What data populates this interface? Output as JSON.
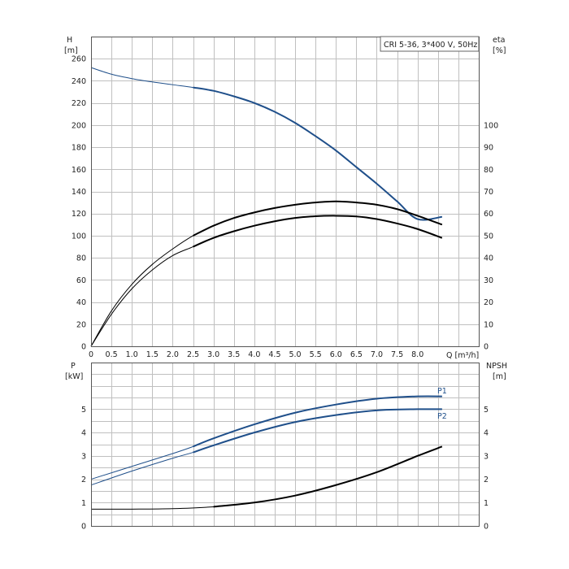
{
  "chart_data": [
    {
      "type": "line",
      "title": "CRI 5-36, 3*400 V, 50Hz",
      "xlabel": "Q [m³/h]",
      "ylabel": "H",
      "ylabel_unit": "[m]",
      "y2label": "eta",
      "y2label_unit": "[%]",
      "xlim": [
        0,
        9.5
      ],
      "ylim": [
        0,
        280
      ],
      "y2lim": [
        0,
        140
      ],
      "x_ticks": [
        "0",
        "0.5",
        "1.0",
        "1.5",
        "2.0",
        "2.5",
        "3.0",
        "3.5",
        "4.0",
        "4.5",
        "5.0",
        "5.5",
        "6.0",
        "6.5",
        "7.0",
        "7.5",
        "8.0"
      ],
      "y_ticks": [
        0,
        20,
        40,
        60,
        80,
        100,
        120,
        140,
        160,
        180,
        200,
        220,
        240,
        260
      ],
      "y2_ticks": [
        0,
        10,
        20,
        30,
        40,
        50,
        60,
        70,
        80,
        90,
        100
      ],
      "grid": true,
      "series": [
        {
          "axis": "left",
          "color": "#1f4f8a",
          "x": [
            0,
            0.5,
            1.0,
            1.5,
            2.0,
            2.5,
            3.0,
            3.5,
            4.0,
            4.5,
            5.0,
            5.5,
            6.0,
            6.5,
            7.0,
            7.5,
            8.0,
            8.6
          ],
          "y": [
            252,
            246,
            242,
            239,
            236.5,
            234,
            231,
            226,
            220,
            212,
            202,
            190,
            177,
            162,
            147,
            131,
            115,
            117
          ]
        },
        {
          "axis": "right",
          "color": "#000000",
          "x": [
            0,
            0.5,
            1.0,
            1.5,
            2.0,
            2.5,
            3.0,
            3.5,
            4.0,
            4.5,
            5.0,
            5.5,
            6.0,
            6.5,
            7.0,
            7.5,
            8.0,
            8.6
          ],
          "y": [
            0,
            16,
            28,
            37,
            44,
            50,
            54.5,
            58,
            60.5,
            62.5,
            64,
            65,
            65.5,
            65,
            64,
            62,
            59,
            55
          ]
        },
        {
          "axis": "right",
          "color": "#000000",
          "x": [
            0,
            0.5,
            1.0,
            1.5,
            2.0,
            2.5,
            3.0,
            3.5,
            4.0,
            4.5,
            5.0,
            5.5,
            6.0,
            6.5,
            7.0,
            7.5,
            8.0,
            8.6
          ],
          "y": [
            0,
            14.5,
            26,
            34.5,
            41,
            45,
            49,
            52,
            54.5,
            56.5,
            58,
            58.8,
            59,
            58.7,
            57.5,
            55.5,
            53,
            49
          ]
        }
      ]
    },
    {
      "type": "line",
      "xlim": [
        0,
        9.5
      ],
      "ylabel": "P",
      "ylabel_unit": "[kW]",
      "y2label": "NPSH",
      "y2label_unit": "[m]",
      "ylim": [
        0,
        7
      ],
      "y2lim": [
        0,
        7
      ],
      "y_ticks": [
        0,
        1,
        2,
        3,
        4,
        5
      ],
      "y2_ticks": [
        0,
        1,
        2,
        3,
        4,
        5
      ],
      "grid": true,
      "series": [
        {
          "name": "P1",
          "axis": "left",
          "color": "#1f4f8a",
          "x": [
            0,
            1,
            2,
            2.5,
            3,
            4,
            5,
            6,
            7,
            8,
            8.6
          ],
          "y": [
            2.0,
            2.55,
            3.1,
            3.4,
            3.75,
            4.35,
            4.85,
            5.2,
            5.45,
            5.55,
            5.55
          ]
        },
        {
          "name": "P2",
          "axis": "left",
          "color": "#1f4f8a",
          "x": [
            0,
            1,
            2,
            2.5,
            3,
            4,
            5,
            6,
            7,
            8,
            8.6
          ],
          "y": [
            1.75,
            2.35,
            2.9,
            3.15,
            3.45,
            4.0,
            4.45,
            4.75,
            4.95,
            5.0,
            5.0
          ]
        },
        {
          "axis": "right",
          "color": "#000000",
          "x": [
            0,
            1,
            2,
            3,
            4,
            5,
            6,
            7,
            8,
            8.6
          ],
          "y": [
            0.72,
            0.72,
            0.74,
            0.82,
            1.0,
            1.3,
            1.75,
            2.3,
            3.0,
            3.4
          ]
        }
      ]
    }
  ]
}
